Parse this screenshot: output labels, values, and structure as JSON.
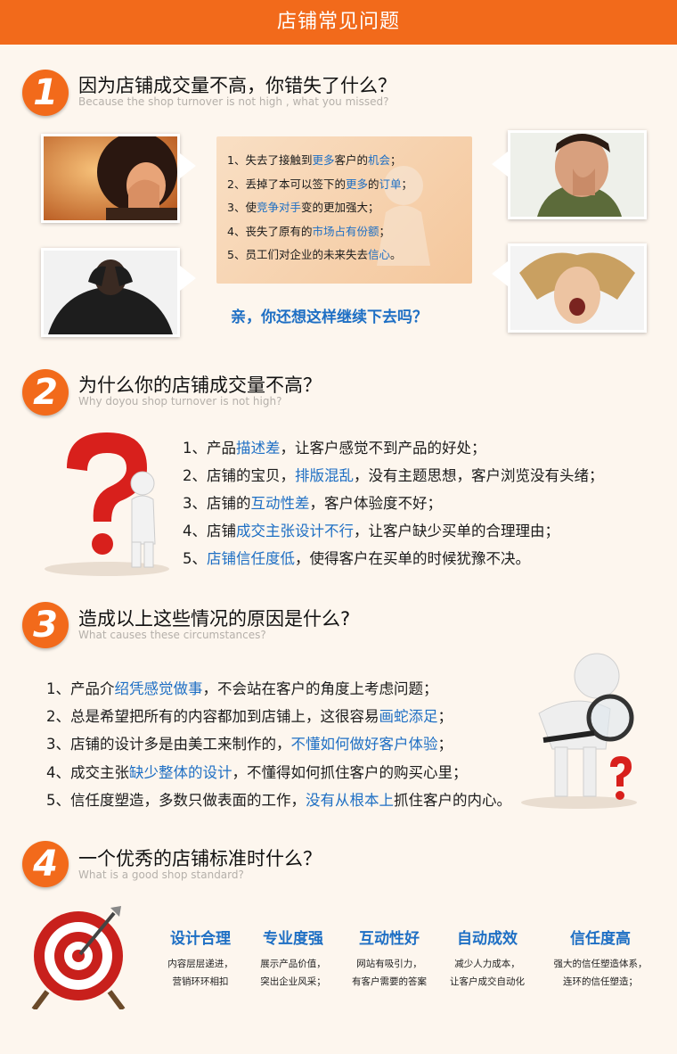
{
  "header": {
    "title": "店铺常见问题"
  },
  "section1": {
    "number": "1",
    "title": "因为店铺成交量不高，你错失了什么？",
    "subtitle": "Because the shop turnover is not high , what you missed?",
    "losses": [
      {
        "a": "1、失去了接触到",
        "h1": "更多",
        "b": "客户的",
        "h2": "机会",
        "c": "；"
      },
      {
        "a": "2、丢掉了本可以签下的",
        "h1": "更多",
        "b": "的",
        "h2": "订单",
        "c": "；"
      },
      {
        "a": "3、使",
        "h1": "竞争对手",
        "b": "变的更加强大；",
        "h2": "",
        "c": ""
      },
      {
        "a": "4、丧失了原有的",
        "h1": "市场占有份额",
        "b": "；",
        "h2": "",
        "c": ""
      },
      {
        "a": "5、员工们对企业的未来失去",
        "h1": "信心",
        "b": "。",
        "h2": "",
        "c": ""
      }
    ],
    "question": "亲，你还想这样继续下去吗？"
  },
  "section2": {
    "number": "2",
    "title": "为什么你的店铺成交量不高？",
    "subtitle": "Why doyou shop turnover is not high?",
    "items": [
      {
        "a": "1、产品",
        "h": "描述差",
        "b": "，让客户感觉不到产品的好处；"
      },
      {
        "a": "2、店铺的宝贝，",
        "h": "排版混乱",
        "b": "，没有主题思想，客户浏览没有头绪；"
      },
      {
        "a": "3、店铺的",
        "h": "互动性差",
        "b": "，客户体验度不好；"
      },
      {
        "a": "4、店铺",
        "h": "成交主张设计不行",
        "b": "，让客户缺少买单的合理理由；"
      },
      {
        "a": "5、",
        "h": "店铺信任度低",
        "b": "，使得客户在买单的时候犹豫不决。"
      }
    ]
  },
  "section3": {
    "number": "3",
    "title": "造成以上这些情况的原因是什么?",
    "subtitle": "What causes these circumstances?",
    "items": [
      {
        "a": "1、产品介",
        "h": "绍凭感觉做事",
        "b": "，不会站在客户的角度上考虑问题；"
      },
      {
        "a": "2、总是希望把所有的内容都加到店铺上，这很容易",
        "h": "画蛇添足",
        "b": "；"
      },
      {
        "a": "3、店铺的设计多是由美工来制作的，",
        "h": "不懂如何做好客户体验",
        "b": "；"
      },
      {
        "a": "4、成交主张",
        "h": "缺少整体的设计",
        "b": "，不懂得如何抓住客户的购买心里；"
      },
      {
        "a": "5、信任度塑造，多数只做表面的工作，",
        "h": "没有从根本上",
        "b": "抓住客户的内心。"
      }
    ]
  },
  "section4": {
    "number": "4",
    "title": "一个优秀的店铺标准时什么？",
    "subtitle": "What is a good shop standard?",
    "standards": [
      {
        "title": "设计合理",
        "line1": "内容层层递进，",
        "line2": "营销环环相扣"
      },
      {
        "title": "专业度强",
        "line1": "展示产品价值，",
        "line2": "突出企业风采；"
      },
      {
        "title": "互动性好",
        "line1": "网站有吸引力，",
        "line2": "有客户需要的答案"
      },
      {
        "title": "自动成效",
        "line1": "减少人力成本，",
        "line2": "让客户成交自动化"
      },
      {
        "title": "信任度高",
        "line1": "强大的信任塑造体系，",
        "line2": "连环的信任塑造；"
      }
    ]
  },
  "colors": {
    "accent": "#f26a1b",
    "highlight": "#1e6fc4",
    "background": "#fdf6ee"
  }
}
